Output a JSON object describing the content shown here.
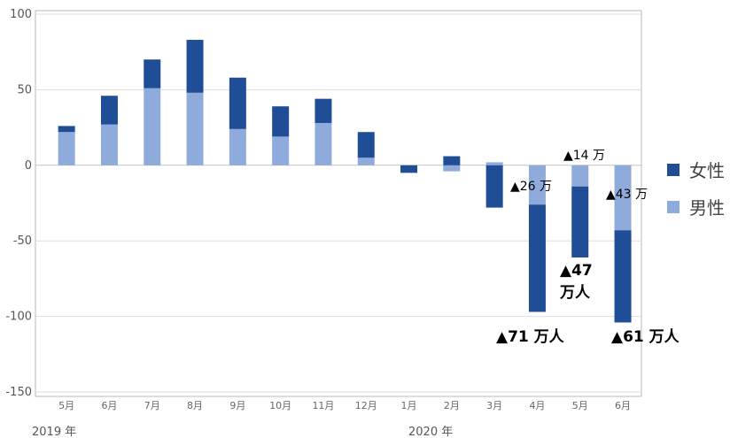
{
  "chart_data": {
    "type": "bar",
    "stacked": true,
    "categories": [
      "5月",
      "6月",
      "7月",
      "8月",
      "9月",
      "10月",
      "11月",
      "12月",
      "1月",
      "2月",
      "3月",
      "4月",
      "5月",
      "6月"
    ],
    "year_labels": [
      "2019 年",
      "2020 年"
    ],
    "series": [
      {
        "name": "男性",
        "color": "#8fabdc",
        "values": [
          22,
          27,
          51,
          48,
          24,
          19,
          28,
          5,
          0,
          -4,
          2,
          -26,
          -14,
          -43
        ]
      },
      {
        "name": "女性",
        "color": "#1f4e97",
        "values": [
          4,
          19,
          19,
          35,
          34,
          20,
          16,
          17,
          -5,
          6,
          -28,
          -71,
          -47,
          -61
        ]
      }
    ],
    "ylim": [
      -150,
      100
    ],
    "yticks": [
      100,
      50,
      0,
      -50,
      -100,
      -150
    ],
    "grid": true,
    "legend_position": "right",
    "annotations": {
      "a_4m": "▲26 万",
      "a_5m": "▲14 万",
      "a_6m": "▲43 万",
      "b_4m": "▲71 万人",
      "b_5m_1": "▲47",
      "b_5m_2": "万人",
      "b_6m": "▲61 万人"
    }
  }
}
